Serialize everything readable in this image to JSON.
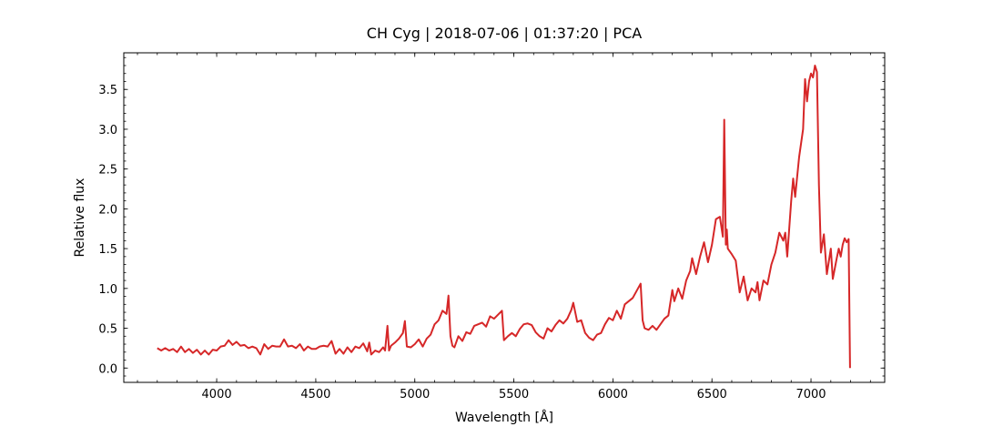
{
  "chart_data": {
    "type": "line",
    "title": "CH Cyg | 2018-07-06 | 01:37:20 | PCA",
    "x_label": "Wavelength [Å]",
    "y_label": "Relative flux",
    "x": [
      3700,
      3720,
      3740,
      3760,
      3780,
      3800,
      3820,
      3840,
      3860,
      3880,
      3900,
      3920,
      3940,
      3960,
      3980,
      4000,
      4020,
      4040,
      4060,
      4080,
      4100,
      4120,
      4140,
      4160,
      4180,
      4200,
      4220,
      4240,
      4260,
      4280,
      4300,
      4320,
      4340,
      4360,
      4380,
      4400,
      4420,
      4440,
      4460,
      4480,
      4500,
      4520,
      4540,
      4560,
      4580,
      4600,
      4620,
      4640,
      4660,
      4680,
      4700,
      4720,
      4740,
      4760,
      4770,
      4780,
      4800,
      4820,
      4840,
      4850,
      4862,
      4870,
      4880,
      4900,
      4920,
      4940,
      4950,
      4960,
      4980,
      5000,
      5020,
      5040,
      5060,
      5080,
      5100,
      5120,
      5140,
      5160,
      5170,
      5180,
      5190,
      5200,
      5220,
      5240,
      5260,
      5280,
      5300,
      5320,
      5340,
      5360,
      5380,
      5400,
      5420,
      5440,
      5450,
      5470,
      5490,
      5510,
      5530,
      5550,
      5570,
      5590,
      5610,
      5630,
      5650,
      5670,
      5690,
      5710,
      5730,
      5750,
      5770,
      5790,
      5800,
      5820,
      5840,
      5860,
      5880,
      5900,
      5920,
      5940,
      5960,
      5980,
      6000,
      6020,
      6040,
      6060,
      6080,
      6100,
      6120,
      6140,
      6150,
      6160,
      6180,
      6200,
      6220,
      6240,
      6260,
      6280,
      6300,
      6310,
      6330,
      6350,
      6370,
      6390,
      6400,
      6420,
      6440,
      6460,
      6480,
      6500,
      6520,
      6540,
      6555,
      6562,
      6570,
      6575,
      6580,
      6600,
      6620,
      6640,
      6660,
      6680,
      6700,
      6720,
      6730,
      6740,
      6760,
      6780,
      6800,
      6820,
      6840,
      6860,
      6870,
      6880,
      6900,
      6910,
      6920,
      6940,
      6960,
      6970,
      6980,
      6990,
      7000,
      7010,
      7020,
      7030,
      7040,
      7050,
      7060,
      7065,
      7080,
      7100,
      7110,
      7130,
      7140,
      7150,
      7160,
      7170,
      7180,
      7190,
      7197
    ],
    "series": [
      {
        "color": "#d62728",
        "values": [
          0.25,
          0.22,
          0.25,
          0.22,
          0.24,
          0.2,
          0.27,
          0.2,
          0.24,
          0.19,
          0.23,
          0.17,
          0.22,
          0.17,
          0.23,
          0.22,
          0.27,
          0.28,
          0.35,
          0.29,
          0.33,
          0.28,
          0.29,
          0.25,
          0.27,
          0.25,
          0.17,
          0.3,
          0.24,
          0.28,
          0.27,
          0.27,
          0.36,
          0.27,
          0.28,
          0.25,
          0.3,
          0.22,
          0.27,
          0.24,
          0.24,
          0.27,
          0.28,
          0.27,
          0.34,
          0.18,
          0.24,
          0.18,
          0.26,
          0.2,
          0.27,
          0.25,
          0.31,
          0.21,
          0.32,
          0.17,
          0.22,
          0.2,
          0.26,
          0.22,
          0.53,
          0.22,
          0.28,
          0.32,
          0.37,
          0.44,
          0.59,
          0.27,
          0.26,
          0.3,
          0.36,
          0.27,
          0.37,
          0.42,
          0.55,
          0.6,
          0.72,
          0.68,
          0.91,
          0.4,
          0.28,
          0.26,
          0.4,
          0.34,
          0.45,
          0.43,
          0.53,
          0.55,
          0.57,
          0.52,
          0.65,
          0.62,
          0.67,
          0.72,
          0.35,
          0.4,
          0.44,
          0.4,
          0.49,
          0.55,
          0.56,
          0.54,
          0.45,
          0.4,
          0.37,
          0.5,
          0.46,
          0.54,
          0.6,
          0.56,
          0.62,
          0.73,
          0.82,
          0.58,
          0.6,
          0.44,
          0.38,
          0.35,
          0.42,
          0.44,
          0.55,
          0.63,
          0.6,
          0.72,
          0.62,
          0.8,
          0.84,
          0.88,
          0.97,
          1.06,
          0.6,
          0.5,
          0.48,
          0.53,
          0.48,
          0.55,
          0.62,
          0.66,
          0.98,
          0.84,
          1.0,
          0.87,
          1.1,
          1.22,
          1.38,
          1.18,
          1.4,
          1.58,
          1.33,
          1.55,
          1.87,
          1.9,
          1.65,
          3.12,
          1.55,
          1.74,
          1.5,
          1.43,
          1.35,
          0.95,
          1.15,
          0.85,
          1.0,
          0.95,
          1.08,
          0.85,
          1.1,
          1.05,
          1.3,
          1.45,
          1.7,
          1.6,
          1.7,
          1.4,
          2.1,
          2.38,
          2.15,
          2.65,
          3.0,
          3.63,
          3.35,
          3.6,
          3.7,
          3.65,
          3.8,
          3.72,
          2.3,
          1.45,
          1.6,
          1.68,
          1.18,
          1.5,
          1.12,
          1.38,
          1.5,
          1.4,
          1.55,
          1.63,
          1.58,
          1.62,
          0.0
        ]
      }
    ],
    "xlim": [
      3531,
      7372
    ],
    "ylim": [
      -0.18,
      3.96
    ],
    "xticks": [
      4000,
      4500,
      5000,
      5500,
      6000,
      6500,
      7000
    ],
    "yticks": [
      {
        "value": 0,
        "label": "0.0"
      },
      0.5,
      {
        "value": 1,
        "label": "1.0"
      },
      1.5,
      {
        "value": 2,
        "label": "2.0"
      },
      2.5,
      {
        "value": 3,
        "label": "3.0"
      },
      3.5
    ],
    "xminorticks": [
      3600,
      3700,
      3800,
      3900,
      4000,
      4100,
      4200,
      4300,
      4400,
      4500,
      4600,
      4700,
      4800,
      4900,
      5000,
      5100,
      5200,
      5300,
      5400,
      5500,
      5600,
      5700,
      5800,
      5900,
      6000,
      6100,
      6200,
      6300,
      6400,
      6500,
      6600,
      6700,
      6800,
      6900,
      7000,
      7100,
      7200,
      7300
    ],
    "yminorticks": [
      -0.1,
      0,
      0.1,
      0.2,
      0.3,
      0.4,
      0.5,
      0.6,
      0.7,
      0.8,
      0.9,
      1,
      1.1,
      1.2,
      1.3,
      1.4,
      1.5,
      1.6,
      1.7,
      1.8,
      1.9,
      2,
      2.1,
      2.2,
      2.3,
      2.4,
      2.5,
      2.6,
      2.7,
      2.8,
      2.9,
      3,
      3.1,
      3.2,
      3.3,
      3.4,
      3.5,
      3.6,
      3.7,
      3.8,
      3.9
    ],
    "grid": false
  }
}
